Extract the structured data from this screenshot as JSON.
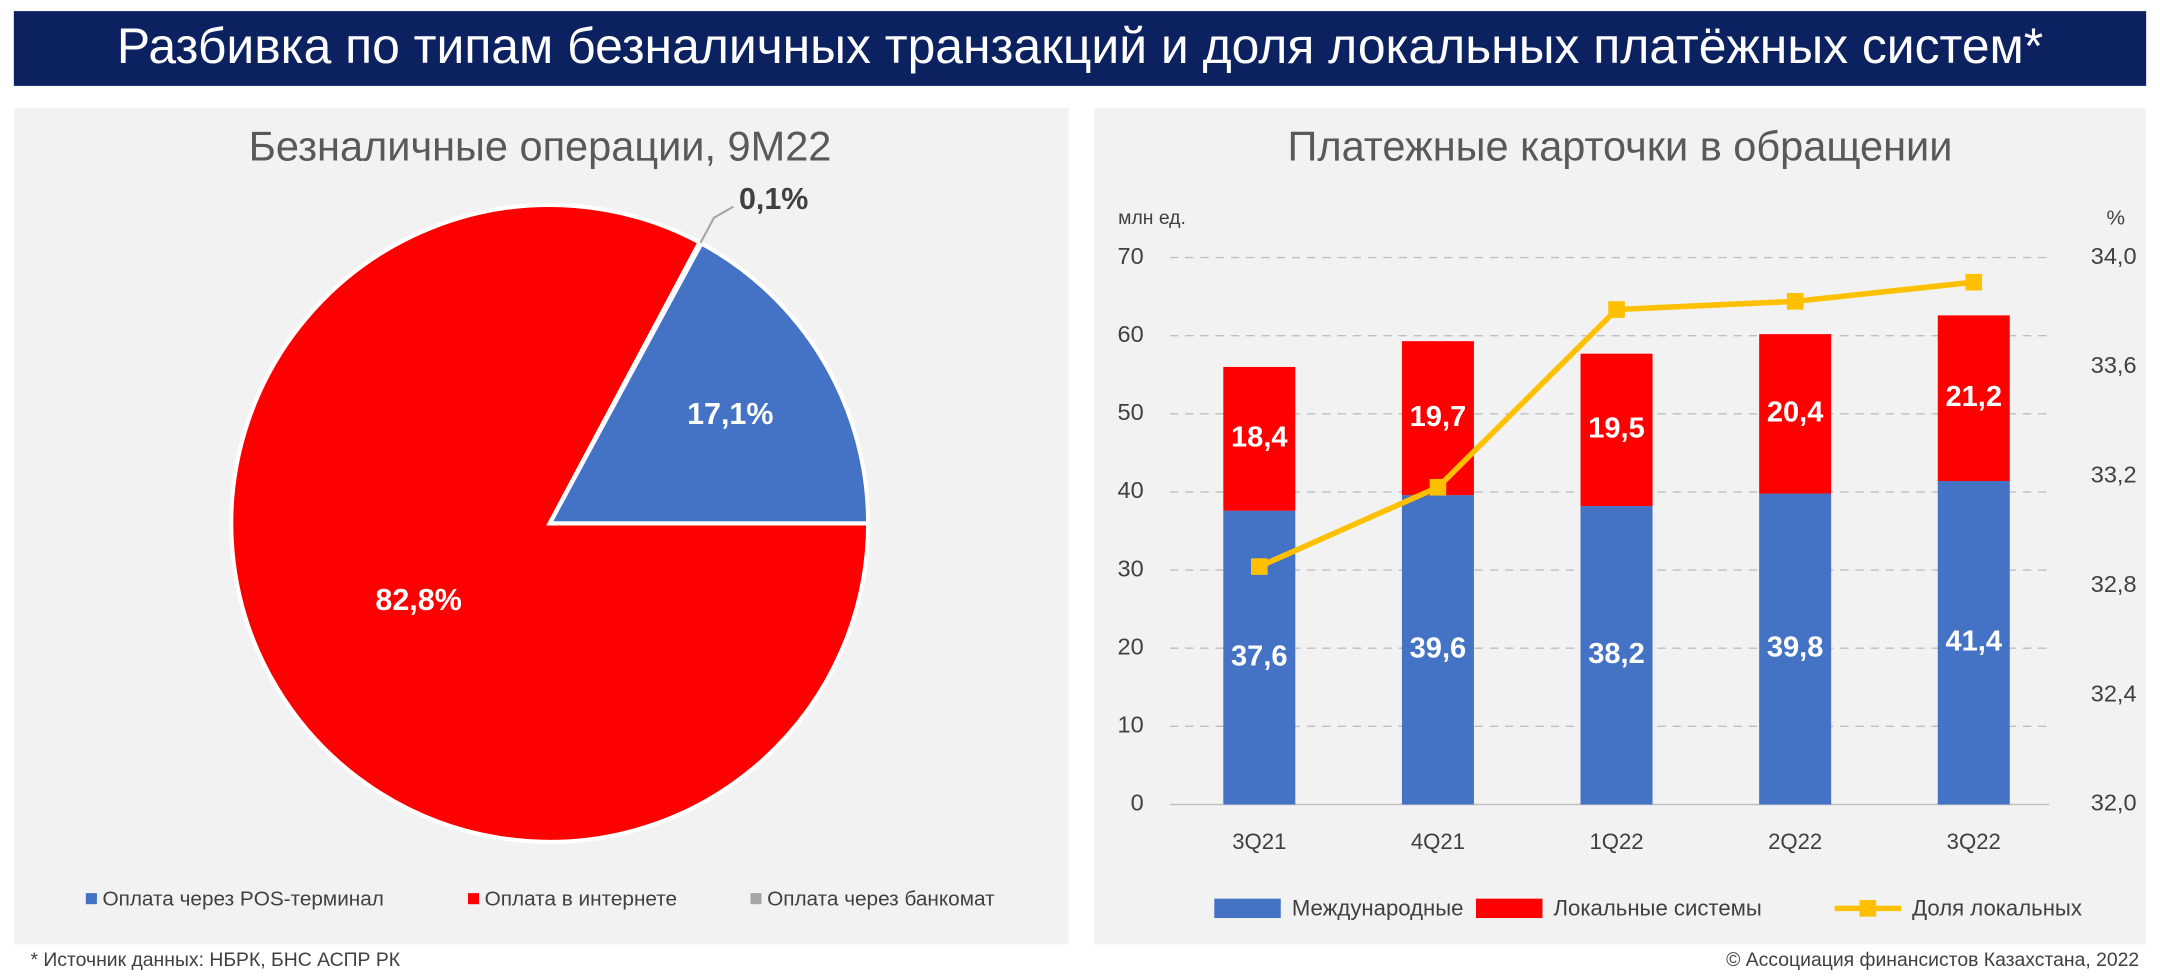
{
  "header": {
    "title": "Разбивка по типам безналичных транзакций и доля локальных платёжных систем*"
  },
  "chart_data": [
    {
      "type": "pie",
      "title": "Безналичные операции, 9M22",
      "categories": [
        "Оплата через POS-терминал",
        "Оплата в интернете",
        "Оплата через банкомат"
      ],
      "values": [
        17.1,
        82.8,
        0.1
      ],
      "value_labels": [
        "17,1%",
        "82,8%",
        "0,1%"
      ],
      "colors": [
        "#4472c4",
        "#ff0000",
        "#a5a5a5"
      ],
      "legend": "bottom"
    },
    {
      "type": "bar",
      "stacked": true,
      "title": "Платежные карточки в обращении",
      "ylabel": "млн ед.",
      "y2label": "%",
      "categories": [
        "3Q21",
        "4Q21",
        "1Q22",
        "2Q22",
        "3Q22"
      ],
      "series": [
        {
          "name": "Международные",
          "color": "#4472c4",
          "values": [
            37.6,
            39.6,
            38.2,
            39.8,
            41.4
          ],
          "value_labels": [
            "37,6",
            "39,6",
            "38,2",
            "39,8",
            "41,4"
          ]
        },
        {
          "name": "Локальные системы",
          "color": "#ff0000",
          "values": [
            18.4,
            19.7,
            19.5,
            20.4,
            21.2
          ],
          "value_labels": [
            "18,4",
            "19,7",
            "19,5",
            "20,4",
            "21,2"
          ]
        },
        {
          "name": "Доля локальных",
          "type": "line",
          "axis": "y2",
          "color": "#ffc000",
          "values": [
            32.87,
            33.16,
            33.81,
            33.84,
            33.91
          ]
        }
      ],
      "ylim": [
        0,
        70
      ],
      "yticks": [
        0,
        10,
        20,
        30,
        40,
        50,
        60,
        70
      ],
      "y2lim": [
        32,
        34
      ],
      "y2ticks": [
        {
          "value": 32,
          "label": "32,0"
        },
        {
          "value": 32.4,
          "label": "32,4"
        },
        {
          "value": 32.8,
          "label": "32,8"
        },
        {
          "value": 33.2,
          "label": "33,2"
        },
        {
          "value": 33.6,
          "label": "33,6"
        },
        {
          "value": 34,
          "label": "34,0"
        }
      ],
      "grid": true,
      "legend": "bottom"
    }
  ],
  "footer": {
    "source": "* Источник данных: НБРК, БНС АСПР РК",
    "copyright": "© Ассоциация финансистов Казахстана, 2022"
  }
}
